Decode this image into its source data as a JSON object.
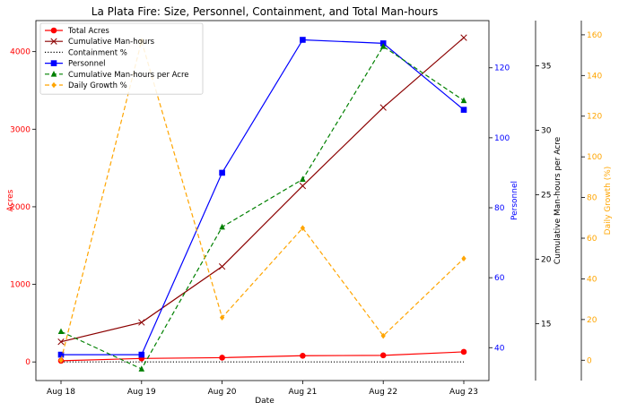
{
  "chart_data": {
    "type": "line",
    "title": "La Plata Fire: Size, Personnel, Containment, and Total Man-hours",
    "xlabel": "Date",
    "categories": [
      "Aug 18",
      "Aug 19",
      "Aug 20",
      "Aug 21",
      "Aug 22",
      "Aug 23"
    ],
    "axes": {
      "left": {
        "label": "Acres",
        "color": "#ff0000",
        "ylim": [
          -240,
          4400
        ],
        "ticks": [
          "0",
          "1000",
          "2000",
          "3000",
          "4000"
        ],
        "tick_values": [
          0,
          1000,
          2000,
          3000,
          4000
        ]
      },
      "personnel": {
        "label": "Personnel",
        "color": "#0000ff",
        "ylim": [
          30.6,
          133.5
        ],
        "ticks": [
          "40",
          "60",
          "80",
          "100",
          "120"
        ],
        "tick_values": [
          40,
          60,
          80,
          100,
          120
        ]
      },
      "manhours_per_acre": {
        "label": "Cumulative Man-hours per Acre",
        "color": "#000000",
        "ylim": [
          10.6,
          38.5
        ],
        "ticks": [
          "15",
          "20",
          "25",
          "30",
          "35"
        ],
        "tick_values": [
          15,
          20,
          25,
          30,
          35
        ]
      },
      "daily_growth": {
        "label": "Daily Growth (%)",
        "color": "#ffa500",
        "ylim": [
          -10,
          167
        ],
        "ticks": [
          "0",
          "20",
          "40",
          "60",
          "80",
          "100",
          "120",
          "140",
          "160"
        ],
        "tick_values": [
          0,
          20,
          40,
          60,
          80,
          100,
          120,
          140,
          160
        ]
      }
    },
    "series": [
      {
        "name": "Total Acres",
        "axis": "left",
        "color": "#ff0000",
        "marker": "circle",
        "dash": "solid",
        "values": [
          15,
          45,
          55,
          80,
          85,
          130
        ]
      },
      {
        "name": "Cumulative Man-hours",
        "axis": "left",
        "color": "#8b0000",
        "marker": "x",
        "dash": "solid",
        "values": [
          260,
          510,
          1230,
          2270,
          3280,
          4180
        ]
      },
      {
        "name": "Containment %",
        "axis": "left",
        "color": "#000000",
        "marker": "none",
        "dash": "dotted",
        "values": [
          0,
          0,
          0,
          0,
          0,
          0
        ]
      },
      {
        "name": "Personnel",
        "axis": "personnel",
        "color": "#0000ff",
        "marker": "square",
        "dash": "solid",
        "values": [
          38,
          38,
          90,
          128,
          127,
          108
        ]
      },
      {
        "name": "Cumulative Man-hours per Acre",
        "axis": "manhours_per_acre",
        "color": "#008000",
        "marker": "triangle",
        "dash": "dashed",
        "values": [
          14.4,
          11.5,
          22.5,
          26.2,
          36.5,
          32.3
        ]
      },
      {
        "name": "Daily Growth %",
        "axis": "daily_growth",
        "color": "#ffa500",
        "marker": "diamond",
        "dash": "dashed",
        "values": [
          0,
          157,
          21,
          65,
          12,
          50
        ]
      }
    ],
    "legend": {
      "location": "top-left"
    },
    "grid": false
  }
}
